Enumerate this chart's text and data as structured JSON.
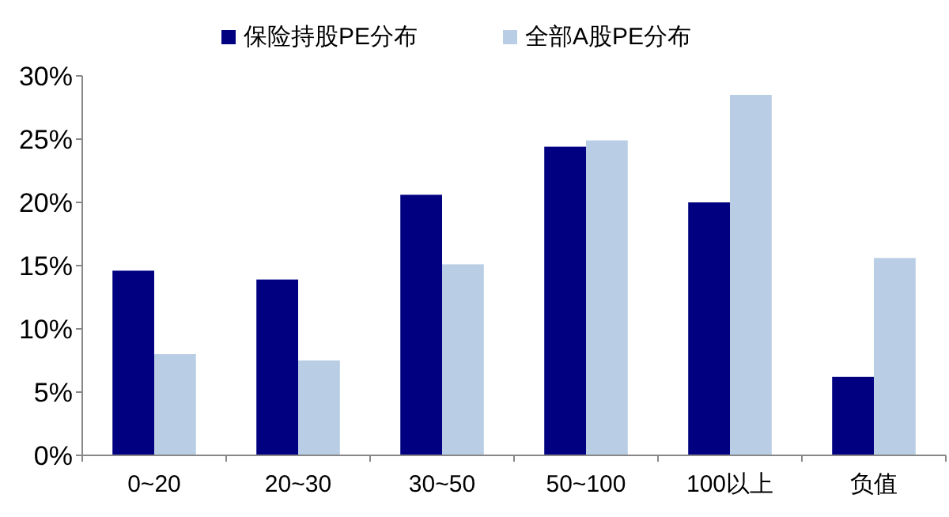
{
  "chart_data": {
    "type": "bar",
    "categories": [
      "0~20",
      "20~30",
      "30~50",
      "50~100",
      "100以上",
      "负值"
    ],
    "series": [
      {
        "name": "保险持股PE分布",
        "color": "#000080",
        "values": [
          14.6,
          13.9,
          20.6,
          24.4,
          20.0,
          6.2
        ]
      },
      {
        "name": "全部A股PE分布",
        "color": "#b9cde5",
        "values": [
          8.0,
          7.5,
          15.1,
          24.9,
          28.5,
          15.6
        ]
      }
    ],
    "ylim": [
      0,
      30
    ],
    "yticks": [
      {
        "value": 0,
        "label": "0%"
      },
      {
        "value": 5,
        "label": "5%"
      },
      {
        "value": 10,
        "label": "10%"
      },
      {
        "value": 15,
        "label": "15%"
      },
      {
        "value": 20,
        "label": "20%"
      },
      {
        "value": 25,
        "label": "25%"
      },
      {
        "value": 30,
        "label": "30%"
      }
    ],
    "legend": "top",
    "grid": false
  }
}
